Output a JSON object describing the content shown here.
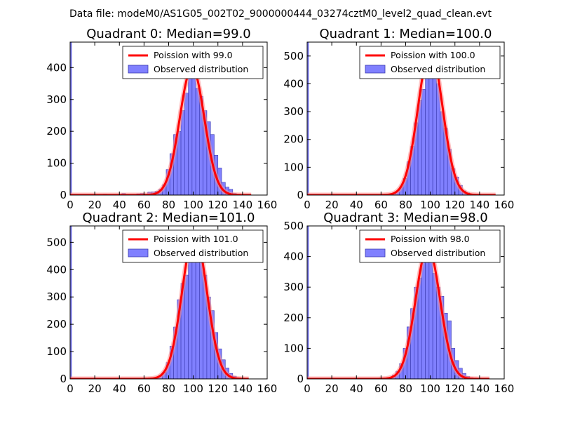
{
  "figure_title": "Data file: modeM0/AS1G05_002T02_9000000444_03274cztM0_level2_quad_clean.evt",
  "colors": {
    "bar_fill": "#8080ff",
    "bar_edge": "#3a3ab0",
    "fit_line": "#ff0000",
    "fit_line_fade": "#ff9090"
  },
  "chart_data": [
    {
      "type": "bar",
      "title": "Quadrant 0: Median=99.0",
      "xlim": [
        0,
        160
      ],
      "ylim": [
        0,
        480
      ],
      "xticks": [
        "0",
        "20",
        "40",
        "60",
        "80",
        "100",
        "120",
        "140",
        "160"
      ],
      "yticks": [
        "0",
        "100",
        "200",
        "300",
        "400"
      ],
      "yticks_values": [
        0,
        100,
        200,
        300,
        400
      ],
      "bin_width": 3,
      "first_bar": {
        "x": 0,
        "width": 1,
        "value": 480
      },
      "bins": [
        [
          27,
          3
        ],
        [
          33,
          2
        ],
        [
          42,
          5
        ],
        [
          48,
          2
        ],
        [
          54,
          4
        ],
        [
          57,
          5
        ],
        [
          60,
          3
        ],
        [
          63,
          9
        ],
        [
          66,
          10
        ],
        [
          69,
          12
        ],
        [
          72,
          18
        ],
        [
          75,
          32
        ],
        [
          78,
          80
        ],
        [
          81,
          130
        ],
        [
          84,
          190
        ],
        [
          87,
          200
        ],
        [
          90,
          265
        ],
        [
          93,
          320
        ],
        [
          96,
          370
        ],
        [
          99,
          455
        ],
        [
          102,
          335
        ],
        [
          105,
          310
        ],
        [
          108,
          265
        ],
        [
          111,
          230
        ],
        [
          114,
          190
        ],
        [
          117,
          125
        ],
        [
          120,
          85
        ],
        [
          123,
          40
        ],
        [
          126,
          25
        ],
        [
          129,
          18
        ],
        [
          132,
          5
        ],
        [
          141,
          2
        ]
      ],
      "legend": {
        "line": "Poission with 99.0",
        "bars": "Observed distribution",
        "placement": "top-right"
      },
      "fit": {
        "mean": 99,
        "peak": 400,
        "sigma": 9.95,
        "xmax": 147
      }
    },
    {
      "type": "bar",
      "title": "Quadrant 1: Median=100.0",
      "xlim": [
        0,
        160
      ],
      "ylim": [
        0,
        550
      ],
      "xticks": [
        "0",
        "20",
        "40",
        "60",
        "80",
        "100",
        "120",
        "140",
        "160"
      ],
      "yticks": [
        "0",
        "100",
        "200",
        "300",
        "400",
        "500"
      ],
      "yticks_values": [
        0,
        100,
        200,
        300,
        400,
        500
      ],
      "bin_width": 3,
      "first_bar": {
        "x": 0,
        "width": 1,
        "value": 550
      },
      "bins": [
        [
          66,
          3
        ],
        [
          69,
          5
        ],
        [
          72,
          12
        ],
        [
          75,
          30
        ],
        [
          78,
          60
        ],
        [
          81,
          120
        ],
        [
          84,
          175
        ],
        [
          87,
          260
        ],
        [
          90,
          340
        ],
        [
          93,
          380
        ],
        [
          96,
          470
        ],
        [
          99,
          500
        ],
        [
          102,
          470
        ],
        [
          105,
          400
        ],
        [
          108,
          300
        ],
        [
          111,
          240
        ],
        [
          114,
          165
        ],
        [
          117,
          95
        ],
        [
          120,
          65
        ],
        [
          123,
          35
        ],
        [
          126,
          15
        ],
        [
          129,
          8
        ],
        [
          132,
          3
        ]
      ],
      "legend": {
        "line": "Poission with 100.0",
        "bars": "Observed distribution",
        "placement": "top-right"
      },
      "fit": {
        "mean": 100,
        "peak": 520,
        "sigma": 10,
        "xmax": 153
      }
    },
    {
      "type": "bar",
      "title": "Quadrant 2: Median=101.0",
      "xlim": [
        0,
        160
      ],
      "ylim": [
        0,
        560
      ],
      "xticks": [
        "0",
        "20",
        "40",
        "60",
        "80",
        "100",
        "120",
        "140",
        "160"
      ],
      "yticks": [
        "0",
        "100",
        "200",
        "300",
        "400",
        "500"
      ],
      "yticks_values": [
        0,
        100,
        200,
        300,
        400,
        500
      ],
      "bin_width": 3,
      "first_bar": {
        "x": 0,
        "width": 1,
        "value": 560
      },
      "bins": [
        [
          69,
          3
        ],
        [
          72,
          10
        ],
        [
          75,
          25
        ],
        [
          78,
          60
        ],
        [
          81,
          120
        ],
        [
          84,
          190
        ],
        [
          87,
          290
        ],
        [
          90,
          350
        ],
        [
          93,
          380
        ],
        [
          96,
          450
        ],
        [
          99,
          510
        ],
        [
          102,
          530
        ],
        [
          105,
          440
        ],
        [
          108,
          380
        ],
        [
          111,
          300
        ],
        [
          114,
          250
        ],
        [
          117,
          170
        ],
        [
          120,
          110
        ],
        [
          123,
          70
        ],
        [
          126,
          40
        ],
        [
          129,
          20
        ],
        [
          132,
          10
        ],
        [
          135,
          4
        ],
        [
          141,
          2
        ]
      ],
      "legend": {
        "line": "Poission with 101.0",
        "bars": "Observed distribution",
        "placement": "top-right"
      },
      "fit": {
        "mean": 101,
        "peak": 530,
        "sigma": 10.05,
        "xmax": 145
      }
    },
    {
      "type": "bar",
      "title": "Quadrant 3: Median=98.0",
      "xlim": [
        0,
        160
      ],
      "ylim": [
        0,
        500
      ],
      "xticks": [
        "0",
        "20",
        "40",
        "60",
        "80",
        "100",
        "120",
        "140",
        "160"
      ],
      "yticks": [
        "0",
        "100",
        "200",
        "300",
        "400",
        "500"
      ],
      "yticks_values": [
        0,
        100,
        200,
        300,
        400,
        500
      ],
      "bin_width": 3,
      "first_bar": {
        "x": 0,
        "width": 1,
        "value": 500
      },
      "bins": [
        [
          66,
          5
        ],
        [
          69,
          12
        ],
        [
          72,
          25
        ],
        [
          75,
          50
        ],
        [
          78,
          100
        ],
        [
          81,
          170
        ],
        [
          84,
          230
        ],
        [
          87,
          300
        ],
        [
          90,
          330
        ],
        [
          93,
          380
        ],
        [
          96,
          450
        ],
        [
          99,
          410
        ],
        [
          102,
          345
        ],
        [
          105,
          300
        ],
        [
          108,
          270
        ],
        [
          111,
          215
        ],
        [
          114,
          190
        ],
        [
          117,
          100
        ],
        [
          120,
          60
        ],
        [
          123,
          35
        ],
        [
          126,
          18
        ],
        [
          129,
          8
        ],
        [
          132,
          4
        ],
        [
          135,
          2
        ]
      ],
      "legend": {
        "line": "Poission with 98.0",
        "bars": "Observed distribution",
        "placement": "top-right"
      },
      "fit": {
        "mean": 98,
        "peak": 430,
        "sigma": 9.9,
        "xmax": 148
      }
    }
  ]
}
